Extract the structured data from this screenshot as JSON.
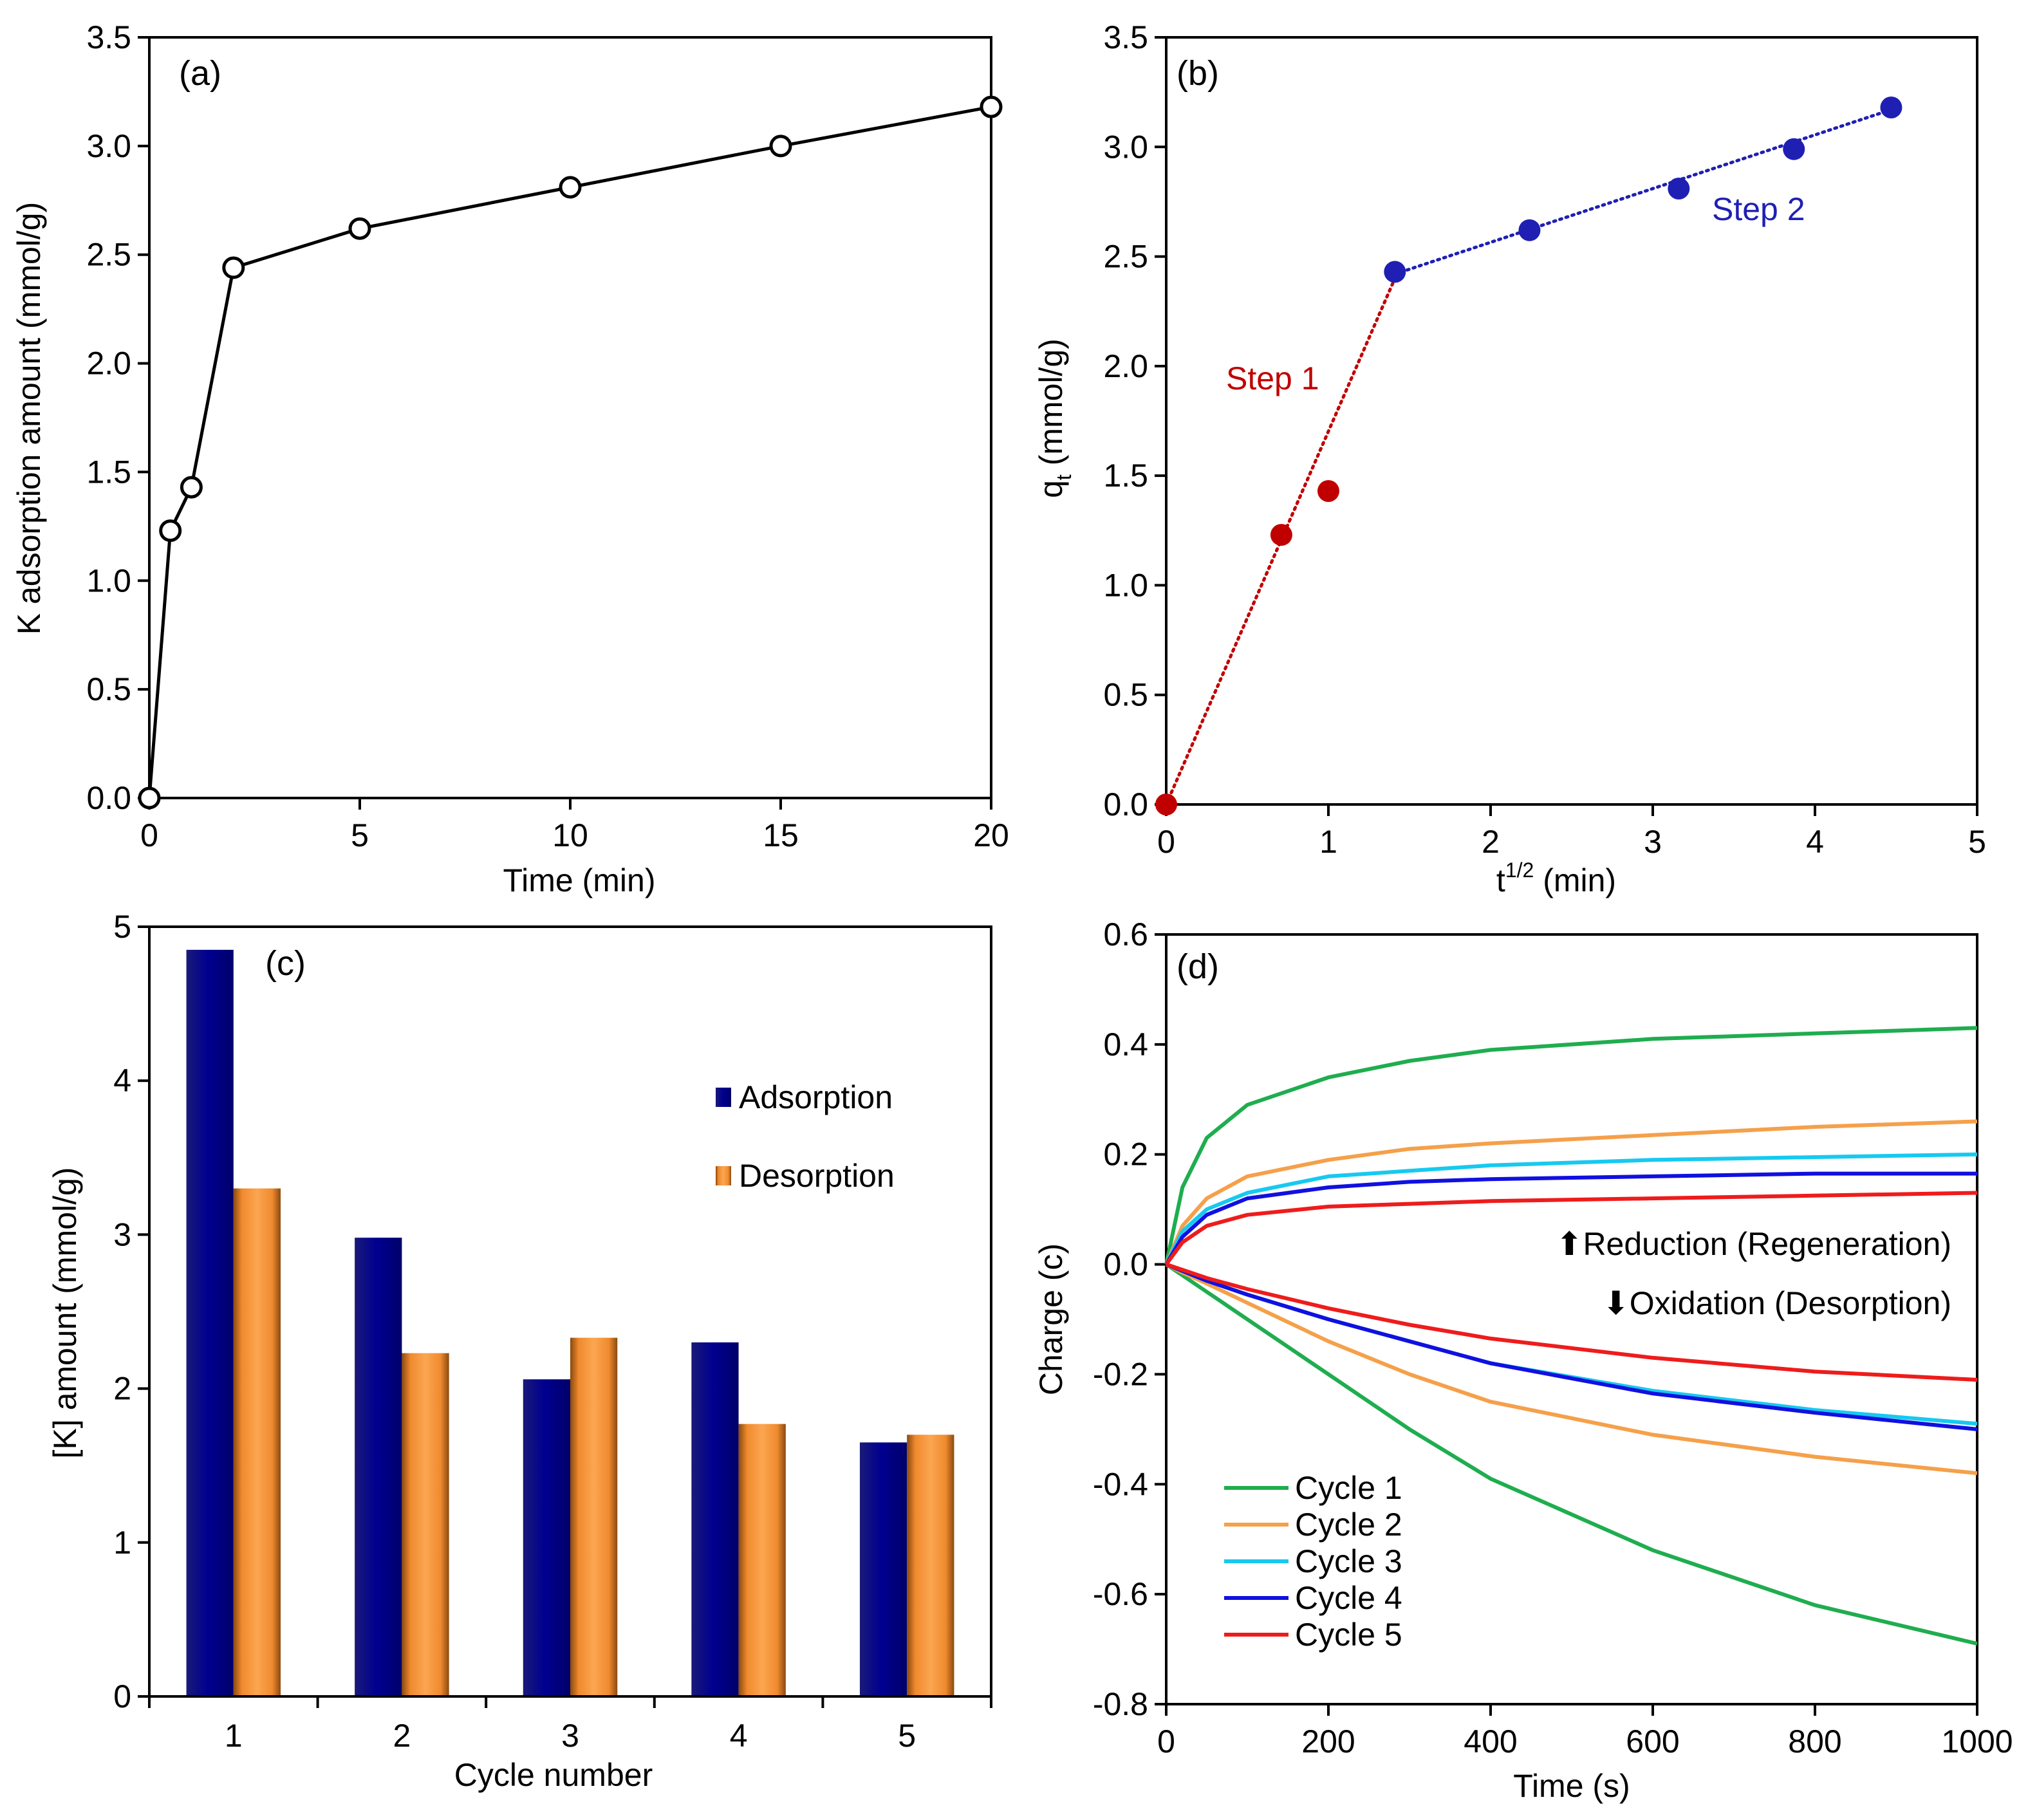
{
  "chart_data": [
    {
      "id": "a",
      "type": "line",
      "panel_label": "(a)",
      "xlabel": "Time (min)",
      "ylabel": "K adsorption amount (mmol/g)",
      "xlim": [
        0,
        20
      ],
      "ylim": [
        0,
        3.5
      ],
      "xticks": [
        "0",
        "5",
        "10",
        "15",
        "20"
      ],
      "yticks": [
        "0.0",
        "0.5",
        "1.0",
        "1.5",
        "2.0",
        "2.5",
        "3.0",
        "3.5"
      ],
      "series": [
        {
          "name": "K adsorption",
          "marker": "open-circle",
          "color": "#000000",
          "x": [
            0,
            0.5,
            1,
            2,
            5,
            10,
            15,
            20
          ],
          "y": [
            0,
            1.23,
            1.43,
            2.44,
            2.62,
            2.81,
            3.0,
            3.18
          ]
        }
      ]
    },
    {
      "id": "b",
      "type": "scatter",
      "panel_label": "(b)",
      "xlabel_main": "t",
      "xlabel_sup": "1/2",
      "xlabel_rest": " (min)",
      "ylabel_main": "q",
      "ylabel_sub": "t",
      "ylabel_rest": " (mmol/g)",
      "xlim": [
        0,
        5
      ],
      "ylim": [
        0,
        3.5
      ],
      "xticks": [
        "0",
        "1",
        "2",
        "3",
        "4",
        "5"
      ],
      "yticks": [
        "0.0",
        "0.5",
        "1.0",
        "1.5",
        "2.0",
        "2.5",
        "3.0",
        "3.5"
      ],
      "annotations": [
        {
          "text": "Step 1",
          "color": "#c00000"
        },
        {
          "text": "Step 2",
          "color": "#1f1fb4"
        }
      ],
      "series": [
        {
          "name": "Step 1",
          "color": "#c00000",
          "x": [
            0,
            0.71,
            1.0
          ],
          "y": [
            0,
            1.23,
            1.43
          ],
          "trend": {
            "x": [
              0,
              1.41
            ],
            "y": [
              0,
              2.4
            ]
          }
        },
        {
          "name": "Step 2",
          "color": "#1f1fb4",
          "x": [
            1.41,
            2.24,
            3.16,
            3.87,
            4.47
          ],
          "y": [
            2.43,
            2.62,
            2.81,
            2.99,
            3.18
          ],
          "trend": {
            "x": [
              1.41,
              4.47
            ],
            "y": [
              2.42,
              3.17
            ]
          }
        }
      ]
    },
    {
      "id": "c",
      "type": "bar",
      "panel_label": "(c)",
      "xlabel": "Cycle number",
      "ylabel": "[K] amount (mmol/g)",
      "ylim": [
        0,
        5
      ],
      "yticks": [
        "0",
        "1",
        "2",
        "3",
        "4",
        "5"
      ],
      "categories": [
        "1",
        "2",
        "3",
        "4",
        "5"
      ],
      "series": [
        {
          "name": "Adsorption",
          "color": "#000090",
          "values": [
            4.85,
            2.98,
            2.06,
            2.3,
            1.65
          ]
        },
        {
          "name": "Desorption",
          "color": "#f08a2e",
          "values": [
            3.3,
            2.23,
            2.33,
            1.77,
            1.7
          ]
        }
      ]
    },
    {
      "id": "d",
      "type": "line",
      "panel_label": "(d)",
      "xlabel": "Time (s)",
      "ylabel": "Charge (c)",
      "xlim": [
        0,
        1000
      ],
      "ylim": [
        -0.8,
        0.6
      ],
      "xticks": [
        "0",
        "200",
        "400",
        "600",
        "800",
        "1000"
      ],
      "yticks": [
        "-0.8",
        "-0.6",
        "-0.4",
        "-0.2",
        "0.0",
        "0.2",
        "0.4",
        "0.6"
      ],
      "annotations": [
        {
          "arrow": "⬆",
          "text": "Reduction (Regeneration)"
        },
        {
          "arrow": "⬇",
          "text": "Oxidation (Desorption)"
        }
      ],
      "series": [
        {
          "name": "Cycle 1",
          "color": "#1fad4f",
          "x": [
            0,
            20,
            50,
            100,
            200,
            300,
            400,
            600,
            800,
            1000
          ],
          "y_reduction": [
            0,
            0.14,
            0.23,
            0.29,
            0.34,
            0.37,
            0.39,
            0.41,
            0.42,
            0.43
          ],
          "y_oxidation": [
            0,
            -0.02,
            -0.05,
            -0.1,
            -0.2,
            -0.3,
            -0.39,
            -0.52,
            -0.62,
            -0.69
          ]
        },
        {
          "name": "Cycle 2",
          "color": "#f5a04a",
          "x": [
            0,
            20,
            50,
            100,
            200,
            300,
            400,
            600,
            800,
            1000
          ],
          "y_reduction": [
            0,
            0.07,
            0.12,
            0.16,
            0.19,
            0.21,
            0.22,
            0.235,
            0.25,
            0.26
          ],
          "y_oxidation": [
            0,
            -0.015,
            -0.035,
            -0.07,
            -0.14,
            -0.2,
            -0.25,
            -0.31,
            -0.35,
            -0.38
          ]
        },
        {
          "name": "Cycle 3",
          "color": "#17c9f0",
          "x": [
            0,
            20,
            50,
            100,
            200,
            300,
            400,
            600,
            800,
            1000
          ],
          "y_reduction": [
            0,
            0.06,
            0.1,
            0.13,
            0.16,
            0.17,
            0.18,
            0.19,
            0.195,
            0.2
          ],
          "y_oxidation": [
            0,
            -0.012,
            -0.03,
            -0.055,
            -0.1,
            -0.14,
            -0.18,
            -0.23,
            -0.265,
            -0.29
          ]
        },
        {
          "name": "Cycle 4",
          "color": "#1010e0",
          "x": [
            0,
            20,
            50,
            100,
            200,
            300,
            400,
            600,
            800,
            1000
          ],
          "y_reduction": [
            0,
            0.05,
            0.09,
            0.12,
            0.14,
            0.15,
            0.155,
            0.16,
            0.165,
            0.165
          ],
          "y_oxidation": [
            0,
            -0.012,
            -0.03,
            -0.055,
            -0.1,
            -0.14,
            -0.18,
            -0.235,
            -0.27,
            -0.3
          ]
        },
        {
          "name": "Cycle 5",
          "color": "#ee1c1c",
          "x": [
            0,
            20,
            50,
            100,
            200,
            300,
            400,
            600,
            800,
            1000
          ],
          "y_reduction": [
            0,
            0.04,
            0.07,
            0.09,
            0.105,
            0.11,
            0.115,
            0.12,
            0.125,
            0.13
          ],
          "y_oxidation": [
            0,
            -0.01,
            -0.025,
            -0.045,
            -0.08,
            -0.11,
            -0.135,
            -0.17,
            -0.195,
            -0.21
          ]
        }
      ]
    }
  ]
}
